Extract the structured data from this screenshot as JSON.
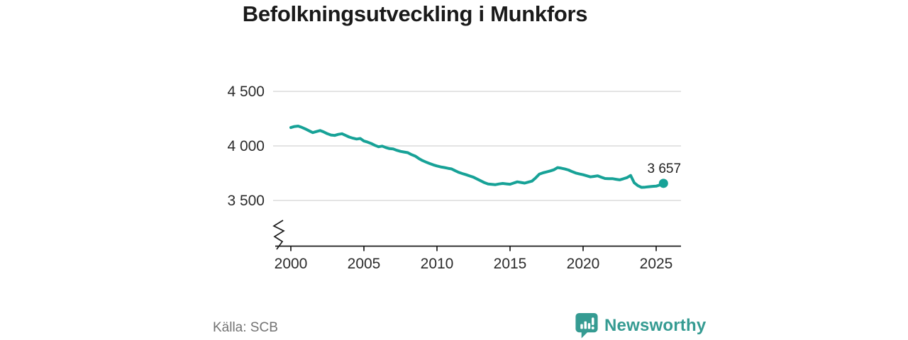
{
  "title": "Befolkningsutveckling i Munkfors",
  "source": "Källa: SCB",
  "branding": {
    "wordmark": "Newsworthy"
  },
  "colors": {
    "line": "#17a297",
    "marker": "#17a297",
    "logo": "#359b92",
    "grid": "#dcdcdc",
    "axis": "#1a1a1a",
    "tick_text": "#2b2b2b",
    "annotation_text": "#1f1f1f",
    "title_text": "#1a1a1a",
    "source_text": "#737373"
  },
  "chart_data": {
    "type": "line",
    "title": "Befolkningsutveckling i Munkfors",
    "xlabel": "",
    "ylabel": "",
    "x_ticks": [
      2000,
      2005,
      2010,
      2015,
      2020,
      2025
    ],
    "y_ticks": [
      4500,
      4000,
      3500
    ],
    "y_tick_labels": [
      "4 500",
      "4 000",
      "3 500"
    ],
    "grid": "horizontal",
    "y_axis_break": true,
    "legend": "none",
    "end_label": "3 657",
    "end_value": 3657,
    "series": [
      {
        "points": [
          [
            2000.0,
            4168
          ],
          [
            2000.25,
            4178
          ],
          [
            2000.5,
            4182
          ],
          [
            2000.75,
            4170
          ],
          [
            2001.0,
            4155
          ],
          [
            2001.25,
            4138
          ],
          [
            2001.5,
            4122
          ],
          [
            2001.75,
            4132
          ],
          [
            2002.0,
            4141
          ],
          [
            2002.25,
            4128
          ],
          [
            2002.5,
            4112
          ],
          [
            2002.75,
            4100
          ],
          [
            2003.0,
            4096
          ],
          [
            2003.25,
            4106
          ],
          [
            2003.5,
            4112
          ],
          [
            2003.75,
            4096
          ],
          [
            2004.0,
            4081
          ],
          [
            2004.25,
            4071
          ],
          [
            2004.5,
            4063
          ],
          [
            2004.75,
            4068
          ],
          [
            2005.0,
            4045
          ],
          [
            2005.25,
            4035
          ],
          [
            2005.5,
            4022
          ],
          [
            2005.75,
            4005
          ],
          [
            2006.0,
            3992
          ],
          [
            2006.25,
            3998
          ],
          [
            2006.5,
            3985
          ],
          [
            2006.75,
            3975
          ],
          [
            2007.0,
            3972
          ],
          [
            2007.25,
            3960
          ],
          [
            2007.5,
            3950
          ],
          [
            2007.75,
            3944
          ],
          [
            2008.0,
            3938
          ],
          [
            2008.25,
            3920
          ],
          [
            2008.5,
            3908
          ],
          [
            2008.75,
            3885
          ],
          [
            2009.0,
            3866
          ],
          [
            2009.25,
            3852
          ],
          [
            2009.5,
            3838
          ],
          [
            2009.75,
            3826
          ],
          [
            2010.0,
            3816
          ],
          [
            2010.25,
            3808
          ],
          [
            2010.5,
            3802
          ],
          [
            2010.75,
            3795
          ],
          [
            2011.0,
            3789
          ],
          [
            2011.25,
            3772
          ],
          [
            2011.5,
            3757
          ],
          [
            2011.75,
            3746
          ],
          [
            2012.0,
            3736
          ],
          [
            2012.25,
            3724
          ],
          [
            2012.5,
            3713
          ],
          [
            2012.75,
            3696
          ],
          [
            2013.0,
            3680
          ],
          [
            2013.25,
            3663
          ],
          [
            2013.5,
            3651
          ],
          [
            2013.75,
            3648
          ],
          [
            2014.0,
            3645
          ],
          [
            2014.25,
            3651
          ],
          [
            2014.5,
            3656
          ],
          [
            2014.75,
            3652
          ],
          [
            2015.0,
            3649
          ],
          [
            2015.25,
            3660
          ],
          [
            2015.5,
            3671
          ],
          [
            2015.75,
            3665
          ],
          [
            2016.0,
            3659
          ],
          [
            2016.25,
            3668
          ],
          [
            2016.5,
            3677
          ],
          [
            2016.75,
            3706
          ],
          [
            2017.0,
            3741
          ],
          [
            2017.25,
            3753
          ],
          [
            2017.5,
            3762
          ],
          [
            2017.75,
            3771
          ],
          [
            2018.0,
            3781
          ],
          [
            2018.25,
            3801
          ],
          [
            2018.5,
            3796
          ],
          [
            2018.75,
            3788
          ],
          [
            2019.0,
            3779
          ],
          [
            2019.25,
            3764
          ],
          [
            2019.5,
            3751
          ],
          [
            2019.75,
            3743
          ],
          [
            2020.0,
            3736
          ],
          [
            2020.25,
            3726
          ],
          [
            2020.5,
            3716
          ],
          [
            2020.75,
            3721
          ],
          [
            2021.0,
            3726
          ],
          [
            2021.25,
            3713
          ],
          [
            2021.5,
            3701
          ],
          [
            2021.75,
            3700
          ],
          [
            2022.0,
            3700
          ],
          [
            2022.25,
            3694
          ],
          [
            2022.5,
            3689
          ],
          [
            2022.75,
            3699
          ],
          [
            2023.0,
            3709
          ],
          [
            2023.25,
            3729
          ],
          [
            2023.5,
            3662
          ],
          [
            2023.75,
            3635
          ],
          [
            2024.0,
            3620
          ],
          [
            2024.25,
            3622
          ],
          [
            2024.5,
            3626
          ],
          [
            2024.75,
            3629
          ],
          [
            2025.0,
            3631
          ],
          [
            2025.25,
            3642
          ],
          [
            2025.5,
            3657
          ]
        ]
      }
    ]
  }
}
